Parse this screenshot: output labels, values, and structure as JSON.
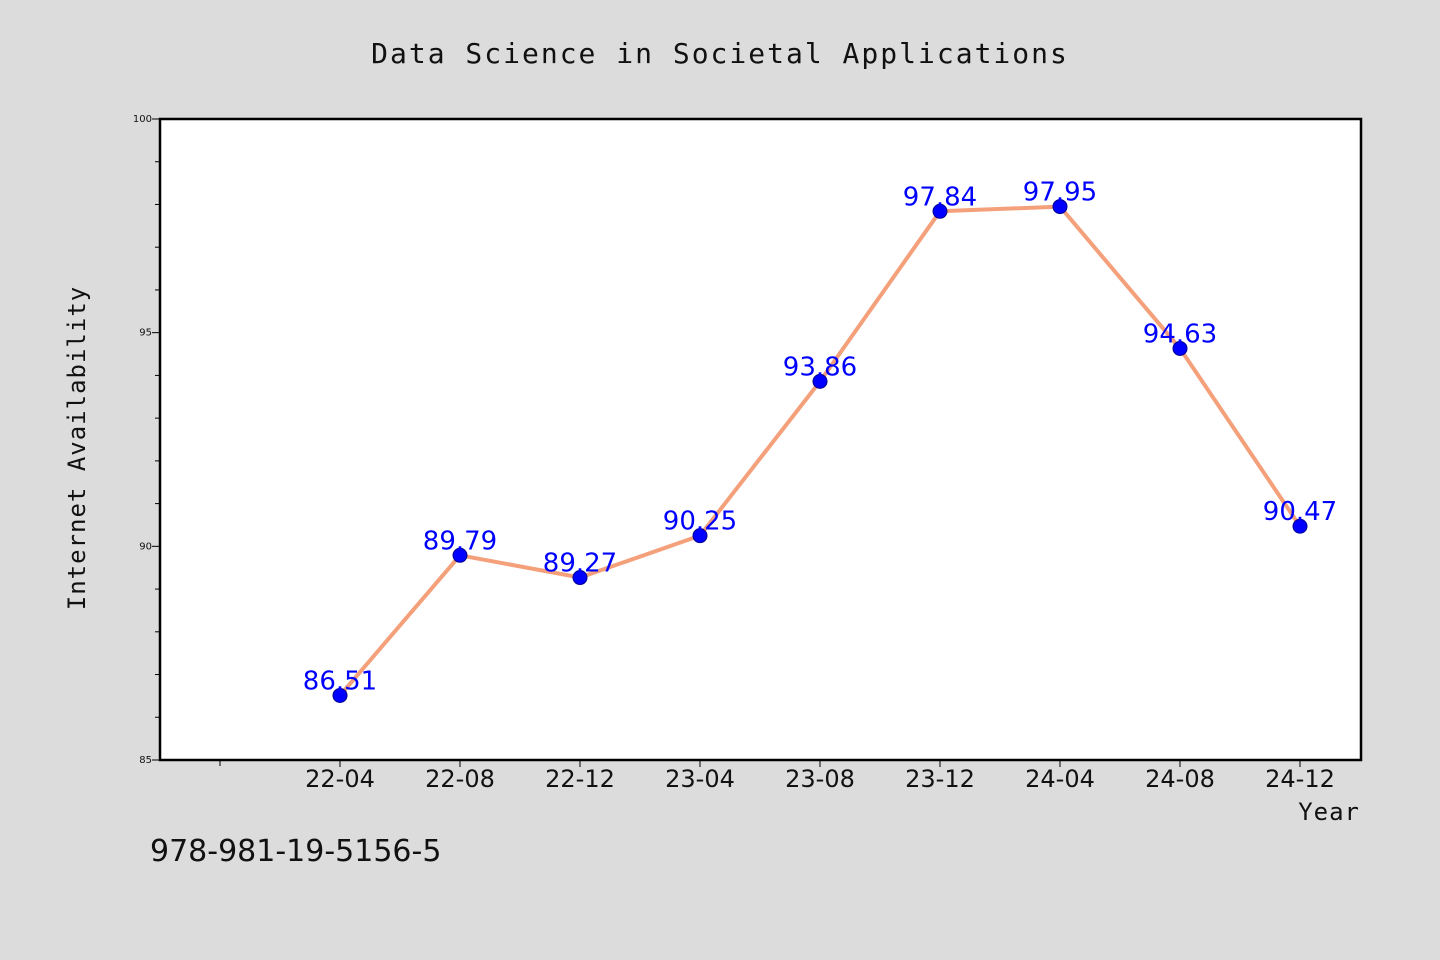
{
  "chart_data": {
    "type": "line",
    "title": "Data Science in Societal Applications",
    "xlabel": "Year",
    "ylabel": "Internet Availability",
    "categories": [
      "22-04",
      "22-08",
      "22-12",
      "23-04",
      "23-08",
      "23-12",
      "24-04",
      "24-08",
      "24-12"
    ],
    "series": [
      {
        "values": [
          86.51,
          89.79,
          89.27,
          90.25,
          93.86,
          97.84,
          97.95,
          94.63,
          90.47
        ],
        "line_color": "#f4a07a",
        "marker_color": "#0000ff"
      }
    ],
    "ylim": [
      85,
      100
    ],
    "yticks": [
      "85",
      "90",
      "95",
      "100"
    ],
    "data_labels": [
      "86.51",
      "89.79",
      "89.27",
      "90.25",
      "93.86",
      "97.84",
      "97.95",
      "94.63",
      "90.47"
    ],
    "grid": false,
    "legend": "none"
  },
  "footer": {
    "isbn": "978-981-19-5156-5"
  }
}
